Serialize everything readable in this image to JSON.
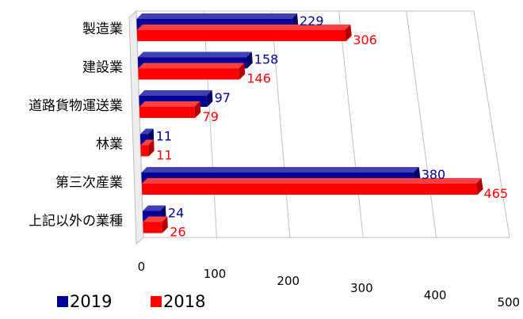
{
  "chart_data": {
    "type": "bar",
    "orientation": "horizontal",
    "style": "3d",
    "title": "",
    "xlabel": "",
    "ylabel": "",
    "categories": [
      "製造業",
      "建設業",
      "道路貨物運送業",
      "林業",
      "第三次産業",
      "上記以外の業種"
    ],
    "series": [
      {
        "name": "2019",
        "color": "#000099",
        "values": [
          229,
          158,
          97,
          11,
          380,
          24
        ]
      },
      {
        "name": "2018",
        "color": "#ff0000",
        "values": [
          306,
          146,
          79,
          11,
          465,
          26
        ]
      }
    ],
    "xlim": [
      0,
      500
    ],
    "x_ticks": [
      0,
      100,
      200,
      300,
      400,
      500
    ],
    "grid": true,
    "data_labels": true,
    "legend_position": "bottom-left"
  }
}
